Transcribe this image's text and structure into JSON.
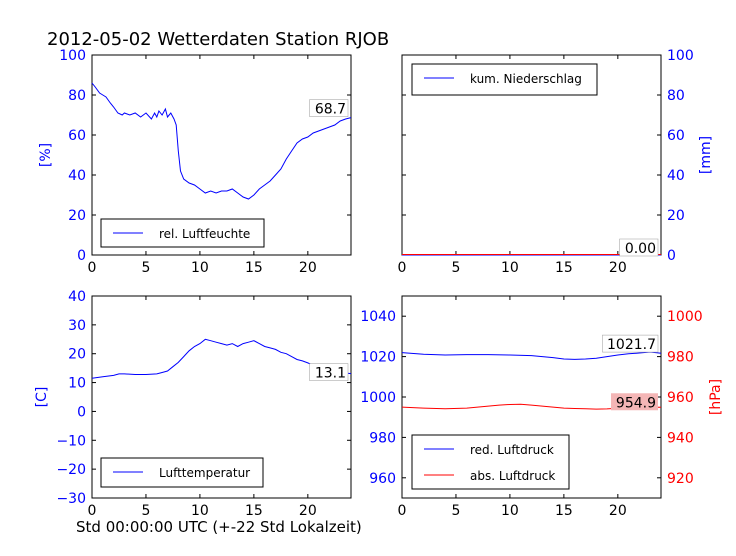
{
  "figure": {
    "title": "2012-05-02 Wetterdaten Station RJOB",
    "xlabel": "Std 00:00:00 UTC (+-22 Std Lokalzeit)"
  },
  "colors": {
    "blue": "#0000ff",
    "red": "#ff0000",
    "label_box": "#f4b6b6"
  },
  "chart_data": [
    {
      "type": "line",
      "panel": "top-left",
      "ylabel": "[%]",
      "xlim": [
        0,
        24
      ],
      "ylim": [
        0,
        100
      ],
      "xticks": [
        "0",
        "5",
        "10",
        "15",
        "20"
      ],
      "yticks": [
        "0",
        "20",
        "40",
        "60",
        "80",
        "100"
      ],
      "legend": {
        "position": "lower-left",
        "entries": [
          "rel. Luftfeuchte"
        ]
      },
      "last_value_label": "68.7",
      "series": [
        {
          "name": "rel. Luftfeuchte",
          "color": "#0000ff",
          "x": [
            0,
            0.3,
            0.7,
            1,
            1.3,
            1.7,
            2,
            2.4,
            2.8,
            3,
            3.5,
            4,
            4.5,
            5,
            5.5,
            5.8,
            6,
            6.2,
            6.5,
            6.8,
            7,
            7.3,
            7.6,
            7.8,
            8,
            8.2,
            8.5,
            9,
            9.5,
            10,
            10.5,
            11,
            11.5,
            12,
            12.5,
            13,
            13.5,
            14,
            14.5,
            15,
            15.5,
            16,
            16.5,
            17,
            17.5,
            18,
            18.5,
            19,
            19.5,
            20,
            20.5,
            21,
            21.5,
            22,
            22.5,
            23,
            23.5,
            24
          ],
          "values": [
            86,
            84,
            81,
            80,
            79,
            76,
            74,
            71,
            70,
            71,
            70,
            71,
            69,
            71,
            68,
            71,
            69,
            72,
            70,
            73,
            69,
            71,
            68,
            65,
            52,
            42,
            38,
            36,
            35,
            33,
            31,
            32,
            31,
            32,
            32,
            33,
            31,
            29,
            28,
            30,
            33,
            35,
            37,
            40,
            43,
            48,
            52,
            56,
            58,
            59,
            61,
            62,
            63,
            64,
            65,
            67,
            68,
            68.7
          ]
        }
      ]
    },
    {
      "type": "line",
      "panel": "top-right",
      "ylabel": "[mm]",
      "xlim": [
        0,
        24
      ],
      "ylim": [
        0,
        100
      ],
      "xticks": [
        "0",
        "5",
        "10",
        "15",
        "20"
      ],
      "yticks": [
        "0",
        "20",
        "40",
        "60",
        "80",
        "100"
      ],
      "legend": {
        "position": "upper-left",
        "entries": [
          "kum. Niederschlag"
        ]
      },
      "last_value_label": "0.00",
      "series": [
        {
          "name": "kum. Niederschlag",
          "color": "#0000ff",
          "x": [
            0,
            24
          ],
          "values": [
            0,
            0
          ]
        }
      ]
    },
    {
      "type": "line",
      "panel": "bottom-left",
      "ylabel": "[C]",
      "xlim": [
        0,
        24
      ],
      "ylim": [
        -30,
        40
      ],
      "xticks": [
        "0",
        "5",
        "10",
        "15",
        "20"
      ],
      "yticks": [
        "−30",
        "−20",
        "−10",
        "0",
        "10",
        "20",
        "30",
        "40"
      ],
      "legend": {
        "position": "lower-left",
        "entries": [
          "Lufttemperatur"
        ]
      },
      "last_value_label": "13.1",
      "series": [
        {
          "name": "Lufttemperatur",
          "color": "#0000ff",
          "x": [
            0,
            1,
            2,
            2.5,
            3,
            4,
            5,
            6,
            6.5,
            7,
            7.5,
            8,
            8.5,
            9,
            9.5,
            10,
            10.5,
            11,
            11.5,
            12,
            12.5,
            13,
            13.5,
            14,
            14.5,
            15,
            15.5,
            16,
            16.5,
            17,
            17.5,
            18,
            18.5,
            19,
            19.5,
            20,
            20.5,
            21,
            21.5,
            22,
            22.5,
            23,
            23.5,
            24
          ],
          "values": [
            11.5,
            12,
            12.5,
            13,
            13,
            12.8,
            12.8,
            13,
            13.5,
            14,
            15.5,
            17,
            19,
            21,
            22.5,
            23.5,
            25,
            24.5,
            24,
            23.5,
            23,
            23.5,
            22.5,
            23.5,
            24,
            24.5,
            23.5,
            22.5,
            22,
            21.5,
            20.5,
            20,
            19,
            18,
            17.5,
            16.8,
            16,
            15.5,
            15,
            14.5,
            14,
            13.6,
            13.3,
            13.1
          ]
        }
      ]
    },
    {
      "type": "line",
      "panel": "bottom-right",
      "ylabel_right": "[hPa]",
      "xlim": [
        0,
        24
      ],
      "ylim": [
        950,
        1050
      ],
      "ylim_right": [
        910,
        1010
      ],
      "xticks": [
        "0",
        "5",
        "10",
        "15",
        "20"
      ],
      "yticks": [
        "960",
        "980",
        "1000",
        "1020",
        "1040"
      ],
      "yticks_right": [
        "920",
        "940",
        "960",
        "980",
        "1000"
      ],
      "legend": {
        "position": "lower-left",
        "entries": [
          "red. Luftdruck",
          "abs. Luftdruck"
        ]
      },
      "last_value_label": "1021.7",
      "last_value_label_right": "954.9",
      "series": [
        {
          "name": "red. Luftdruck",
          "color": "#0000ff",
          "axis": "left",
          "x": [
            0,
            2,
            4,
            6,
            8,
            10,
            12,
            14,
            15,
            16,
            17,
            18,
            19,
            20,
            21,
            22,
            23,
            24
          ],
          "values": [
            1022,
            1021.2,
            1020.8,
            1021,
            1021,
            1020.8,
            1020.5,
            1019.5,
            1018.8,
            1018.6,
            1018.8,
            1019.2,
            1020,
            1020.8,
            1021.4,
            1021.8,
            1022.3,
            1021.7
          ]
        },
        {
          "name": "abs. Luftdruck",
          "color": "#ff0000",
          "axis": "right",
          "x": [
            0,
            2,
            4,
            6,
            8,
            9,
            10,
            11,
            12,
            13,
            14,
            15,
            16,
            17,
            18,
            19,
            20,
            21,
            22,
            23,
            24
          ],
          "values": [
            955,
            954.5,
            954.2,
            954.5,
            955.5,
            956,
            956.3,
            956.4,
            956,
            955.5,
            955,
            954.5,
            954.3,
            954.2,
            954,
            954.1,
            954.4,
            954.6,
            954.8,
            955,
            954.9
          ]
        }
      ]
    }
  ]
}
